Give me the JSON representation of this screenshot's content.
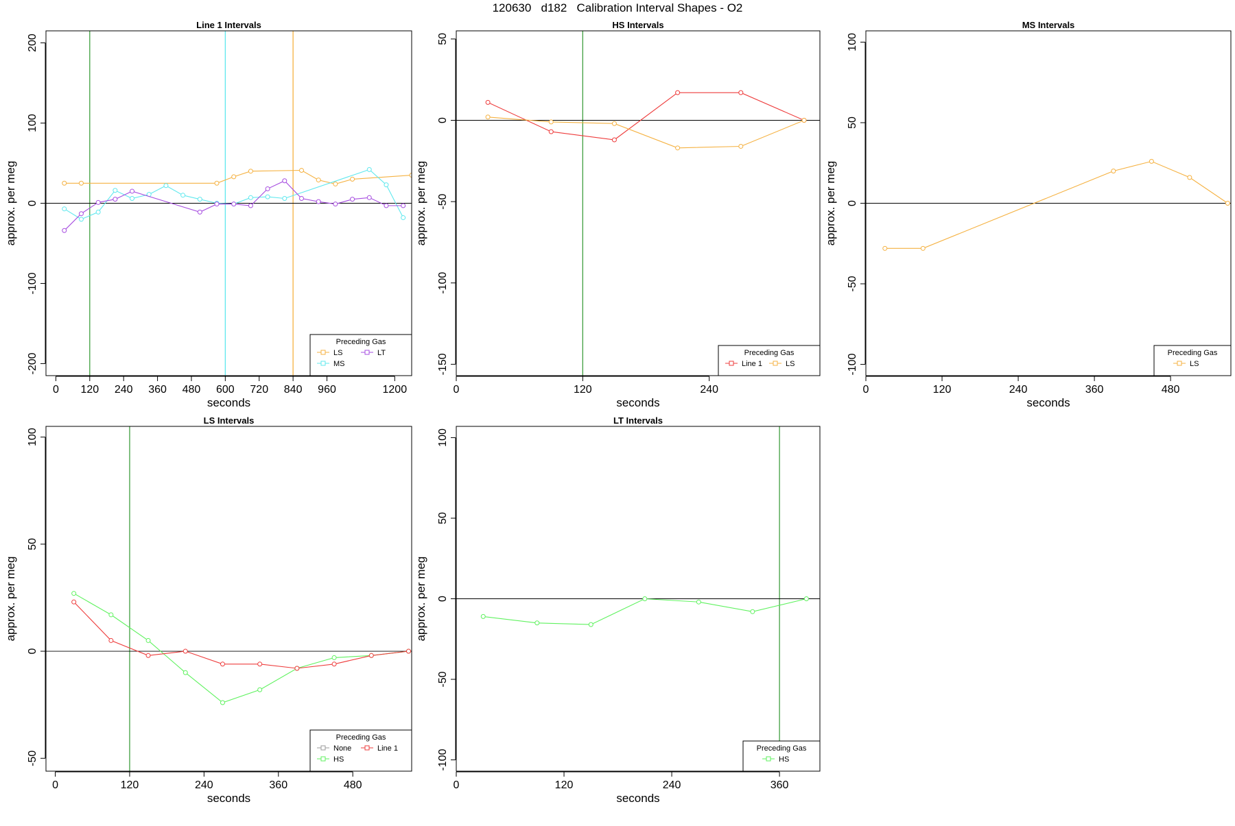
{
  "page_title": "120630   d182   Calibration Interval Shapes - O2",
  "chart_data": [
    {
      "type": "line",
      "title": "Line 1 Intervals",
      "xlabel": "seconds",
      "ylabel": "approx. per meg",
      "xlim": [
        -35,
        1260
      ],
      "ylim": [
        -215,
        215
      ],
      "xticks": [
        0,
        120,
        240,
        360,
        480,
        600,
        720,
        840,
        960,
        1200
      ],
      "xtick_labels": [
        "0",
        "120",
        "240",
        "360",
        "480",
        "600",
        "720",
        "840",
        "960",
        "1200"
      ],
      "yticks": [
        -200,
        -100,
        0,
        100,
        200
      ],
      "ytick_labels": [
        "-200",
        "-100",
        "0",
        "100",
        "200"
      ],
      "hline": 0,
      "vlines": [
        {
          "x": 120,
          "color": "#3f9f3f"
        },
        {
          "x": 600,
          "color": "#5fe8ee"
        },
        {
          "x": 840,
          "color": "#f5b140"
        }
      ],
      "legend": {
        "title": "Preceding Gas",
        "placement": "bottom-right",
        "entries": [
          {
            "label": "LS",
            "color": "#f5b140"
          },
          {
            "label": "LT",
            "color": "#a64ce0"
          },
          {
            "label": "MS",
            "color": "#5fe8ee"
          }
        ]
      },
      "series": [
        {
          "name": "LS",
          "color": "#f5b140",
          "x": [
            30,
            90,
            570,
            630,
            690,
            870,
            930,
            990,
            1050,
            1260
          ],
          "y": [
            25,
            25,
            25,
            33,
            40,
            41,
            29,
            24,
            30,
            35
          ]
        },
        {
          "name": "MS",
          "color": "#5fe8ee",
          "x": [
            30,
            90,
            150,
            210,
            270,
            330,
            390,
            450,
            510,
            570,
            630,
            690,
            750,
            810,
            1110,
            1170,
            1230
          ],
          "y": [
            -7,
            -20,
            -11,
            16,
            6,
            11,
            22,
            10,
            5,
            0,
            -1,
            7,
            8,
            6,
            42,
            23,
            -18
          ]
        },
        {
          "name": "LT",
          "color": "#a64ce0",
          "x": [
            30,
            90,
            150,
            210,
            270,
            510,
            570,
            630,
            690,
            750,
            810,
            870,
            930,
            990,
            1050,
            1110,
            1170,
            1230
          ],
          "y": [
            -34,
            -13,
            1,
            5,
            15,
            -11,
            -1,
            -1,
            -3,
            18,
            28,
            6,
            2,
            -1,
            5,
            7,
            -3,
            -3
          ]
        }
      ]
    },
    {
      "type": "line",
      "title": "HS Intervals",
      "xlabel": "seconds",
      "ylabel": "approx. per meg",
      "xlim": [
        0,
        345
      ],
      "ylim": [
        -157,
        55
      ],
      "xticks": [
        0,
        120,
        240
      ],
      "xtick_labels": [
        "0",
        "120",
        "240"
      ],
      "yticks": [
        -150,
        -100,
        -50,
        0,
        50
      ],
      "ytick_labels": [
        "-150",
        "-100",
        "-50",
        "0",
        "50"
      ],
      "hline": 0,
      "vlines": [
        {
          "x": 120,
          "color": "#3f9f3f"
        }
      ],
      "legend": {
        "title": "Preceding Gas",
        "placement": "bottom-right",
        "entries": [
          {
            "label": "Line 1",
            "color": "#ee3b3b"
          },
          {
            "label": "LS",
            "color": "#f5b140"
          }
        ]
      },
      "series": [
        {
          "name": "Line 1",
          "color": "#ee3b3b",
          "x": [
            30,
            90,
            150,
            210,
            270,
            330
          ],
          "y": [
            11,
            -7,
            -12,
            17,
            17,
            0
          ]
        },
        {
          "name": "LS",
          "color": "#f5b140",
          "x": [
            30,
            90,
            150,
            210,
            270,
            330
          ],
          "y": [
            2,
            -1,
            -2,
            -17,
            -16,
            0
          ]
        }
      ]
    },
    {
      "type": "line",
      "title": "MS Intervals",
      "xlabel": "seconds",
      "ylabel": "approx. per meg",
      "xlim": [
        0,
        575
      ],
      "ylim": [
        -107,
        107
      ],
      "xticks": [
        0,
        120,
        240,
        360,
        480
      ],
      "xtick_labels": [
        "0",
        "120",
        "240",
        "360",
        "480"
      ],
      "yticks": [
        -100,
        -50,
        0,
        50,
        100
      ],
      "ytick_labels": [
        "-100",
        "-50",
        "0",
        "50",
        "100"
      ],
      "hline": 0,
      "vlines": [],
      "legend": {
        "title": "Preceding Gas",
        "placement": "bottom-right",
        "entries": [
          {
            "label": "LS",
            "color": "#f5b140"
          }
        ]
      },
      "series": [
        {
          "name": "LS",
          "color": "#f5b140",
          "x": [
            30,
            90,
            390,
            450,
            510,
            570
          ],
          "y": [
            -28,
            -28,
            20,
            26,
            16,
            0
          ]
        }
      ]
    },
    {
      "type": "line",
      "title": "LS Intervals",
      "xlabel": "seconds",
      "ylabel": "approx. per meg",
      "xlim": [
        -15,
        575
      ],
      "ylim": [
        -56,
        105
      ],
      "xticks": [
        0,
        120,
        240,
        360,
        480
      ],
      "xtick_labels": [
        "0",
        "120",
        "240",
        "360",
        "480"
      ],
      "yticks": [
        -50,
        0,
        50,
        100
      ],
      "ytick_labels": [
        "-50",
        "0",
        "50",
        "100"
      ],
      "hline": 0,
      "vlines": [
        {
          "x": 120,
          "color": "#3f9f3f"
        }
      ],
      "legend": {
        "title": "Preceding Gas",
        "placement": "bottom-right",
        "entries": [
          {
            "label": "None",
            "color": "#9a9a9a"
          },
          {
            "label": "Line 1",
            "color": "#ee3b3b"
          },
          {
            "label": "HS",
            "color": "#5ef25e"
          }
        ]
      },
      "series": [
        {
          "name": "HS",
          "color": "#5ef25e",
          "x": [
            30,
            90,
            150,
            210,
            270,
            330,
            390,
            450,
            510,
            570
          ],
          "y": [
            27,
            17,
            5,
            -10,
            -24,
            -18,
            -8,
            -3,
            -2,
            0
          ]
        },
        {
          "name": "Line 1",
          "color": "#ee3b3b",
          "x": [
            30,
            90,
            150,
            210,
            270,
            330,
            390,
            450,
            510,
            570
          ],
          "y": [
            23,
            5,
            -2,
            0,
            -6,
            -6,
            -8,
            -6,
            -2,
            0
          ]
        }
      ]
    },
    {
      "type": "line",
      "title": "LT Intervals",
      "xlabel": "seconds",
      "ylabel": "approx. per meg",
      "xlim": [
        0,
        405
      ],
      "ylim": [
        -107,
        107
      ],
      "xticks": [
        0,
        120,
        240,
        360
      ],
      "xtick_labels": [
        "0",
        "120",
        "240",
        "360"
      ],
      "yticks": [
        -100,
        -50,
        0,
        50,
        100
      ],
      "ytick_labels": [
        "-100",
        "-50",
        "0",
        "50",
        "100"
      ],
      "hline": 0,
      "vlines": [
        {
          "x": 360,
          "color": "#3f9f3f"
        }
      ],
      "legend": {
        "title": "Preceding Gas",
        "placement": "bottom-right",
        "entries": [
          {
            "label": "HS",
            "color": "#5ef25e"
          }
        ]
      },
      "series": [
        {
          "name": "HS",
          "color": "#5ef25e",
          "x": [
            30,
            90,
            150,
            210,
            270,
            330,
            390
          ],
          "y": [
            -11,
            -15,
            -16,
            0,
            -2,
            -8,
            0
          ]
        }
      ]
    }
  ]
}
